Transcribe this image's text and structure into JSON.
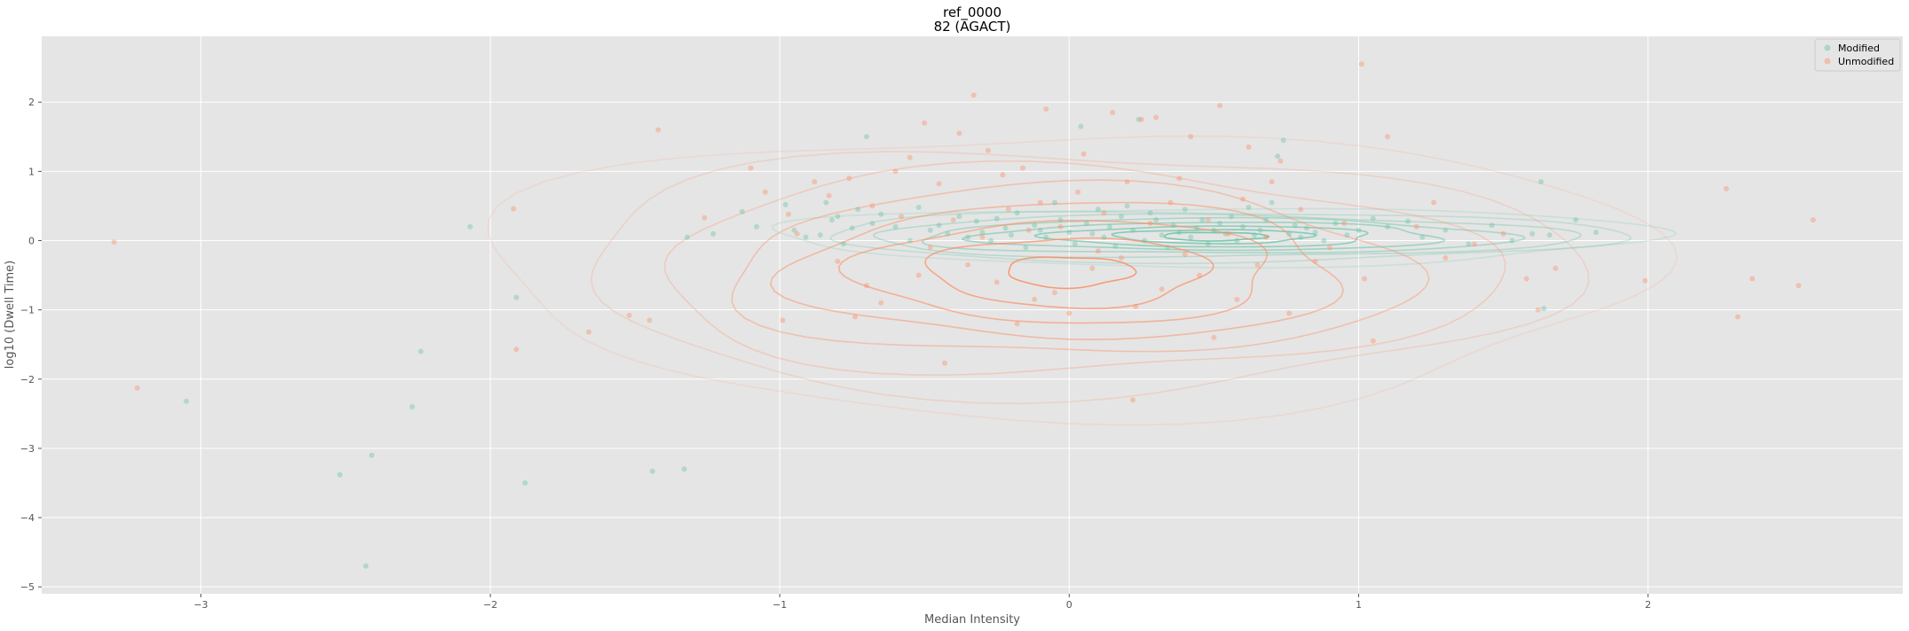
{
  "chart_data": {
    "type": "scatter",
    "title": "ref_0000",
    "subtitle": "82 (AGACT)",
    "xlabel": "Median Intensity",
    "ylabel": "log10 (Dwell Time)",
    "xlim": [
      -3.55,
      2.88
    ],
    "ylim": [
      -5.1,
      2.95
    ],
    "xticks": [
      -3,
      -2,
      -1,
      0,
      1,
      2
    ],
    "yticks": [
      -5,
      -4,
      -3,
      -2,
      -1,
      0,
      1,
      2
    ],
    "xtick_labels": [
      "−3",
      "−2",
      "−1",
      "0",
      "1",
      "2"
    ],
    "ytick_labels": [
      "−5",
      "−4",
      "−3",
      "−2",
      "−1",
      "0",
      "1",
      "2"
    ],
    "grid": true,
    "legend_position": "top-right",
    "series": [
      {
        "name": "Modified",
        "color": "#66c2a5",
        "x": [
          -3.05,
          -2.52,
          -2.41,
          -2.43,
          -2.27,
          -2.24,
          -2.07,
          -1.91,
          -1.88,
          -1.44,
          -1.33,
          -1.32,
          -1.23,
          -1.13,
          -1.08,
          -0.98,
          -0.95,
          -0.91,
          -0.86,
          -0.84,
          -0.82,
          -0.8,
          -0.78,
          -0.75,
          -0.73,
          -0.7,
          -0.68,
          -0.65,
          -0.6,
          -0.55,
          -0.52,
          -0.48,
          -0.45,
          -0.42,
          -0.38,
          -0.35,
          -0.32,
          -0.3,
          -0.27,
          -0.25,
          -0.22,
          -0.2,
          -0.18,
          -0.15,
          -0.12,
          -0.1,
          -0.08,
          -0.05,
          -0.03,
          0.0,
          0.02,
          0.04,
          0.06,
          0.08,
          0.1,
          0.12,
          0.14,
          0.16,
          0.18,
          0.2,
          0.22,
          0.24,
          0.26,
          0.28,
          0.3,
          0.32,
          0.34,
          0.36,
          0.38,
          0.4,
          0.42,
          0.44,
          0.46,
          0.48,
          0.5,
          0.52,
          0.54,
          0.56,
          0.58,
          0.6,
          0.62,
          0.64,
          0.66,
          0.68,
          0.7,
          0.72,
          0.74,
          0.76,
          0.78,
          0.8,
          0.82,
          0.85,
          0.88,
          0.92,
          0.96,
          1.0,
          1.05,
          1.1,
          1.17,
          1.22,
          1.3,
          1.38,
          1.46,
          1.53,
          1.6,
          1.63,
          1.64,
          1.66,
          1.75,
          1.82
        ],
        "y": [
          -2.32,
          -3.38,
          -3.1,
          -4.7,
          -2.4,
          -1.6,
          0.2,
          -0.82,
          -3.5,
          -3.33,
          -3.3,
          0.05,
          0.1,
          0.42,
          0.2,
          0.52,
          0.15,
          0.05,
          0.08,
          0.55,
          0.3,
          0.35,
          -0.05,
          0.18,
          0.45,
          1.5,
          0.25,
          0.38,
          0.2,
          0.0,
          0.48,
          0.15,
          0.22,
          0.1,
          0.35,
          0.05,
          0.28,
          0.12,
          0.0,
          0.32,
          0.18,
          0.08,
          0.4,
          -0.1,
          0.22,
          0.15,
          0.05,
          0.55,
          0.3,
          0.12,
          -0.05,
          1.65,
          0.25,
          0.1,
          0.45,
          0.05,
          0.2,
          -0.08,
          0.35,
          0.5,
          0.15,
          1.75,
          0.0,
          0.4,
          0.3,
          0.08,
          -0.1,
          0.22,
          0.12,
          0.45,
          0.05,
          0.18,
          0.3,
          -0.05,
          0.15,
          0.25,
          0.1,
          0.35,
          0.0,
          0.2,
          0.48,
          0.08,
          0.15,
          0.3,
          0.55,
          1.22,
          1.45,
          0.1,
          0.22,
          0.05,
          0.18,
          0.12,
          0.0,
          0.25,
          0.08,
          0.15,
          0.32,
          0.2,
          0.28,
          0.05,
          0.15,
          -0.05,
          0.22,
          0.0,
          0.1,
          0.85,
          -0.98,
          0.08,
          0.3,
          0.12
        ]
      },
      {
        "name": "Unmodified",
        "color": "#fc8d62",
        "x": [
          -3.3,
          -3.22,
          -1.92,
          -1.91,
          -1.66,
          -1.52,
          -1.45,
          -1.42,
          -1.26,
          -1.1,
          -1.05,
          -0.99,
          -0.97,
          -0.94,
          -0.88,
          -0.83,
          -0.8,
          -0.76,
          -0.74,
          -0.7,
          -0.68,
          -0.65,
          -0.6,
          -0.58,
          -0.55,
          -0.52,
          -0.5,
          -0.48,
          -0.45,
          -0.43,
          -0.4,
          -0.38,
          -0.35,
          -0.33,
          -0.3,
          -0.28,
          -0.25,
          -0.23,
          -0.21,
          -0.18,
          -0.16,
          -0.14,
          -0.12,
          -0.1,
          -0.08,
          -0.05,
          -0.03,
          0.0,
          0.03,
          0.05,
          0.08,
          0.1,
          0.12,
          0.15,
          0.18,
          0.2,
          0.22,
          0.23,
          0.25,
          0.28,
          0.3,
          0.32,
          0.35,
          0.38,
          0.4,
          0.42,
          0.45,
          0.48,
          0.5,
          0.52,
          0.55,
          0.58,
          0.6,
          0.62,
          0.65,
          0.68,
          0.7,
          0.73,
          0.76,
          0.8,
          0.85,
          0.9,
          0.95,
          1.01,
          1.02,
          1.05,
          1.1,
          1.2,
          1.26,
          1.3,
          1.4,
          1.5,
          1.58,
          1.62,
          1.68,
          1.99,
          2.27,
          2.31,
          2.36,
          2.52,
          2.57
        ],
        "y": [
          -0.02,
          -2.13,
          0.46,
          -1.57,
          -1.32,
          -1.08,
          -1.15,
          1.6,
          0.33,
          1.05,
          0.7,
          -1.15,
          0.38,
          0.1,
          0.85,
          0.65,
          -0.3,
          0.9,
          -1.1,
          -0.65,
          0.5,
          -0.9,
          1.0,
          0.35,
          1.2,
          -0.5,
          1.7,
          -0.1,
          0.82,
          -1.77,
          0.3,
          1.55,
          -0.35,
          2.1,
          0.05,
          1.3,
          -0.6,
          0.95,
          0.45,
          -1.2,
          1.05,
          0.15,
          -0.85,
          0.55,
          1.9,
          -0.75,
          0.2,
          -1.05,
          0.7,
          1.25,
          -0.4,
          -0.15,
          0.4,
          1.85,
          -0.25,
          0.85,
          -2.3,
          -0.95,
          1.75,
          0.25,
          1.78,
          -0.7,
          0.55,
          0.9,
          -0.2,
          1.5,
          -0.5,
          0.3,
          -1.4,
          1.95,
          0.1,
          -0.85,
          0.6,
          1.35,
          -0.35,
          0.05,
          0.85,
          1.15,
          -1.05,
          0.45,
          -0.3,
          -0.1,
          0.25,
          2.55,
          -0.55,
          -1.45,
          1.5,
          0.2,
          0.55,
          -0.25,
          -0.05,
          0.1,
          -0.55,
          -1.0,
          -0.4,
          -0.58,
          0.75,
          -1.1,
          -0.55,
          -0.65,
          0.3
        ]
      }
    ],
    "contours": [
      {
        "series": "Modified",
        "color": "#66c2a5",
        "cx": 0.5,
        "cy": 0.06,
        "rx": [
          1.52,
          1.38,
          1.22,
          1.02,
          0.8,
          0.56,
          0.34,
          0.18
        ],
        "ry": [
          0.42,
          0.36,
          0.3,
          0.25,
          0.2,
          0.15,
          0.1,
          0.06
        ],
        "opacity": [
          0.2,
          0.28,
          0.36,
          0.45,
          0.55,
          0.65,
          0.75,
          0.85
        ]
      },
      {
        "series": "Unmodified",
        "color": "#fc8d62",
        "cx": 0.0,
        "cy": -0.45,
        "rx": [
          2.0,
          1.72,
          1.45,
          1.18,
          0.95,
          0.72,
          0.48,
          0.22
        ],
        "ry": [
          2.05,
          1.75,
          1.48,
          1.22,
          0.98,
          0.74,
          0.5,
          0.22
        ],
        "opacity": [
          0.15,
          0.22,
          0.3,
          0.4,
          0.5,
          0.6,
          0.7,
          0.85
        ]
      }
    ]
  }
}
